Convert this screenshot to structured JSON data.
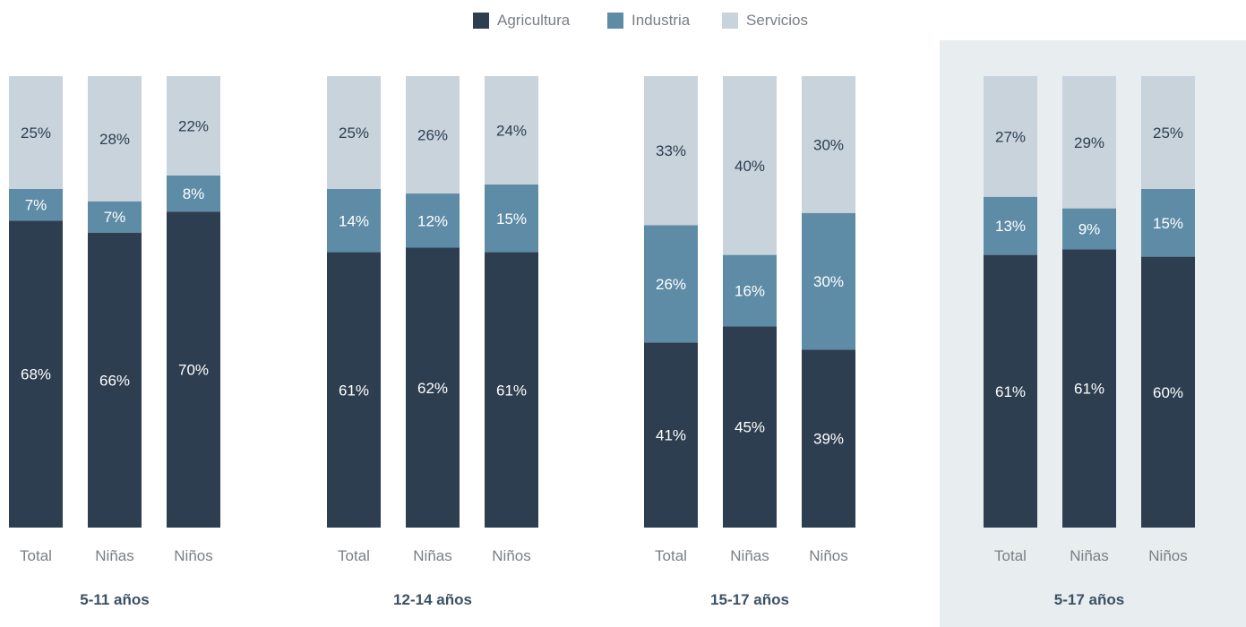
{
  "chart_data": {
    "type": "bar",
    "stacked": true,
    "unit": "%",
    "legend": {
      "position": "top-center",
      "items": [
        {
          "name": "Agricultura",
          "color": "#2d3e50"
        },
        {
          "name": "Industria",
          "color": "#5e8ca6"
        },
        {
          "name": "Servicios",
          "color": "#c8d3dc"
        }
      ]
    },
    "colors": {
      "highlight_panel": "#e8edf0",
      "label_light": "#ffffff",
      "label_dark": "#2d3e50",
      "category_label": "#7a7f85",
      "group_title": "#3b5164"
    },
    "groups": [
      {
        "title": "5-11 años",
        "highlighted": false,
        "bars": [
          {
            "label": "Total",
            "values": [
              68,
              7,
              25
            ]
          },
          {
            "label": "Niñas",
            "values": [
              66,
              7,
              28
            ]
          },
          {
            "label": "Niños",
            "values": [
              70,
              8,
              22
            ]
          }
        ]
      },
      {
        "title": "12-14 años",
        "highlighted": false,
        "bars": [
          {
            "label": "Total",
            "values": [
              61,
              14,
              25
            ]
          },
          {
            "label": "Niñas",
            "values": [
              62,
              12,
              26
            ]
          },
          {
            "label": "Niños",
            "values": [
              61,
              15,
              24
            ]
          }
        ]
      },
      {
        "title": "15-17 años",
        "highlighted": false,
        "bars": [
          {
            "label": "Total",
            "values": [
              41,
              26,
              33
            ]
          },
          {
            "label": "Niñas",
            "values": [
              45,
              16,
              40
            ]
          },
          {
            "label": "Niños",
            "values": [
              39,
              30,
              30
            ]
          }
        ]
      },
      {
        "title": "5-17 años",
        "highlighted": true,
        "bars": [
          {
            "label": "Total",
            "values": [
              61,
              13,
              27
            ]
          },
          {
            "label": "Niñas",
            "values": [
              61,
              9,
              29
            ]
          },
          {
            "label": "Niños",
            "values": [
              60,
              15,
              25
            ]
          }
        ]
      }
    ]
  }
}
